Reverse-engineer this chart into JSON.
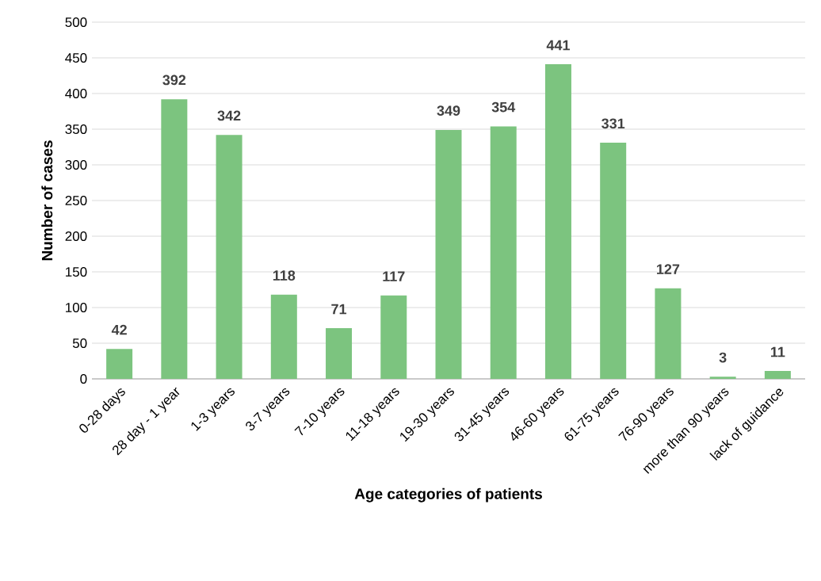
{
  "chart_data": {
    "type": "bar",
    "xlabel": "Age categories of patients",
    "ylabel": "Number of cases",
    "categories": [
      "0-28 days",
      "28 day - 1 year",
      "1-3 years",
      "3-7 years",
      "7-10 years",
      "11-18 years",
      "19-30 years",
      "31-45 years",
      "46-60 years",
      "61-75 years",
      "76-90 years",
      "more than 90 years",
      "lack of guidance"
    ],
    "values": [
      42,
      392,
      342,
      118,
      71,
      117,
      349,
      354,
      441,
      331,
      127,
      3,
      11
    ],
    "color": "#7cc47f",
    "ylim": [
      0,
      500
    ],
    "yticks": [
      0,
      50,
      100,
      150,
      200,
      250,
      300,
      350,
      400,
      450,
      500
    ],
    "grid": "y",
    "data_labels": true
  }
}
